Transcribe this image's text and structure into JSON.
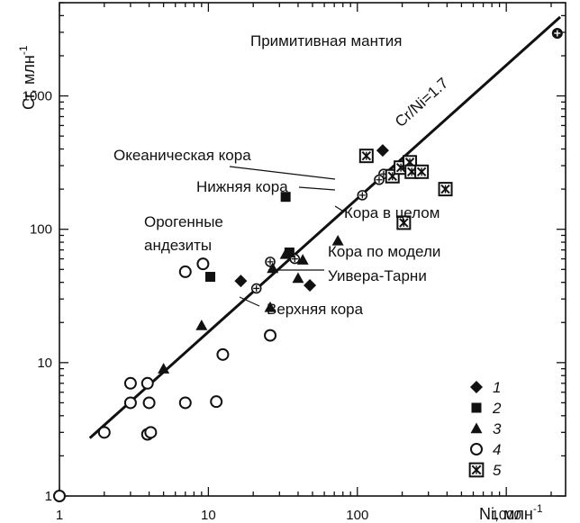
{
  "chart_data": {
    "type": "scatter",
    "xscale": "log",
    "yscale": "log",
    "xlim": [
      1,
      2500
    ],
    "ylim": [
      1,
      5000
    ],
    "xlabel": "Ni, млн",
    "xlabel_sup": "-1",
    "ylabel": "Cr, млн",
    "ylabel_sup": "-1",
    "x_ticks": [
      {
        "value": 1,
        "label": "1"
      },
      {
        "value": 10,
        "label": "10"
      },
      {
        "value": 100,
        "label": "100"
      },
      {
        "value": 1000,
        "label": "1000"
      }
    ],
    "y_ticks": [
      {
        "value": 1,
        "label": "1"
      },
      {
        "value": 10,
        "label": "10"
      },
      {
        "value": 100,
        "label": "100"
      },
      {
        "value": 1000,
        "label": "1000"
      }
    ],
    "reference_line": {
      "label": "Cr/Ni=1.7",
      "ratio": 1.7,
      "x_range": [
        1.6,
        2300
      ]
    },
    "series": [
      {
        "name": "1",
        "marker": "diamond",
        "points": [
          [
            16.5,
            41
          ],
          [
            48,
            38
          ],
          [
            148,
            390
          ]
        ]
      },
      {
        "name": "2",
        "marker": "square",
        "points": [
          [
            10.3,
            44
          ],
          [
            33,
            175
          ],
          [
            35,
            67
          ]
        ]
      },
      {
        "name": "3",
        "marker": "triangle",
        "points": [
          [
            5,
            9
          ],
          [
            9,
            19
          ],
          [
            26,
            26
          ],
          [
            27,
            51
          ],
          [
            33,
            65
          ],
          [
            40,
            43
          ],
          [
            43,
            59
          ],
          [
            74,
            82
          ]
        ]
      },
      {
        "name": "4",
        "marker": "circle-open",
        "points": [
          [
            1,
            1
          ],
          [
            2,
            3
          ],
          [
            3,
            7
          ],
          [
            3,
            5
          ],
          [
            3.9,
            7
          ],
          [
            4,
            5
          ],
          [
            3.9,
            2.9
          ],
          [
            4.1,
            3
          ],
          [
            7,
            48
          ],
          [
            7,
            5
          ],
          [
            9.2,
            55
          ],
          [
            11.3,
            5.1
          ],
          [
            12.5,
            11.5
          ],
          [
            26,
            16
          ]
        ]
      },
      {
        "name": "5",
        "marker": "boxed-x",
        "points": [
          [
            115,
            355
          ],
          [
            172,
            250
          ],
          [
            196,
            290
          ],
          [
            205,
            112
          ],
          [
            225,
            318
          ],
          [
            232,
            270
          ],
          [
            270,
            270
          ],
          [
            390,
            200
          ]
        ]
      }
    ],
    "reservoirs": [
      {
        "label": "Примитивная мантия",
        "x": 2200,
        "y": 2950,
        "marker": "circle-plus-filled"
      },
      {
        "label": "Океаническая кора",
        "x": 150,
        "y": 260,
        "marker": "circle-plus"
      },
      {
        "label": "Нижняя кора",
        "x": 140,
        "y": 235,
        "marker": "circle-plus"
      },
      {
        "label": "Кора в целом",
        "x": 108,
        "y": 180,
        "marker": "circle-plus"
      },
      {
        "label": "Кора по модели Уивера-Тарни",
        "x": 38,
        "y": 60,
        "marker": "circle-plus"
      },
      {
        "label": "Верхняя кора",
        "x": 21,
        "y": 36,
        "marker": "circle-plus"
      },
      {
        "label": "Орогенные андезиты",
        "x": 26,
        "y": 57,
        "marker": "circle-plus"
      }
    ],
    "annotations": [
      {
        "id": "primitive-mantle",
        "lines": [
          "Примитивная мантия"
        ]
      },
      {
        "id": "oceanic-crust",
        "lines": [
          "Океаническая кора"
        ]
      },
      {
        "id": "lower-crust",
        "lines": [
          "Нижняя кора"
        ]
      },
      {
        "id": "bulk-crust",
        "lines": [
          "Кора в целом"
        ]
      },
      {
        "id": "orogenic-andesites",
        "lines": [
          "Орогенные",
          "андезиты"
        ]
      },
      {
        "id": "model-crust",
        "lines": [
          "Кора по модели",
          "Уивера-Тарни"
        ]
      },
      {
        "id": "upper-crust",
        "lines": [
          "Верхняя кора"
        ]
      }
    ],
    "legend": {
      "placement": "bottom-right",
      "entries": [
        {
          "label": "1",
          "marker": "diamond"
        },
        {
          "label": "2",
          "marker": "square"
        },
        {
          "label": "3",
          "marker": "triangle"
        },
        {
          "label": "4",
          "marker": "circle-open"
        },
        {
          "label": "5",
          "marker": "boxed-x"
        }
      ]
    },
    "grid": false,
    "colors": {
      "ink": "#111111",
      "background": "#ffffff"
    }
  }
}
